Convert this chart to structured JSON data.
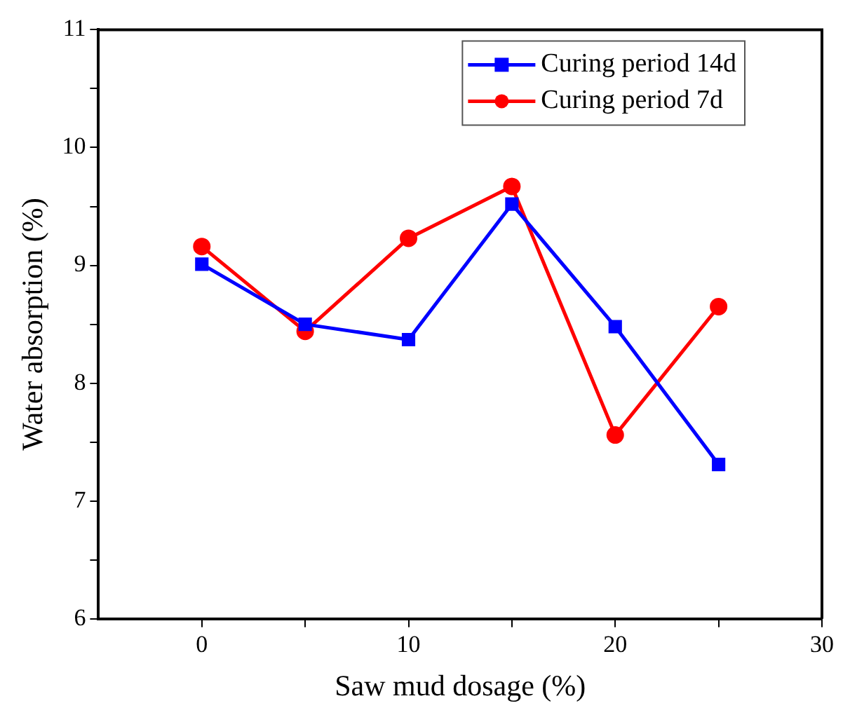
{
  "chart_data": {
    "type": "line",
    "xlabel": "Saw mud dosage (%)",
    "ylabel": "Water absorption (%)",
    "x": [
      0,
      5,
      10,
      15,
      20,
      25
    ],
    "series": [
      {
        "name": "Curing period 14d",
        "color": "#0000ff",
        "marker": "square",
        "values": [
          9.01,
          8.5,
          8.37,
          9.52,
          8.48,
          7.31
        ]
      },
      {
        "name": "Curing period 7d",
        "color": "#ff0000",
        "marker": "circle",
        "values": [
          9.16,
          8.44,
          9.23,
          9.67,
          7.56,
          8.65
        ]
      }
    ],
    "xlim": [
      -5,
      30
    ],
    "xticks": [
      0,
      {
        "value": 5,
        "label": null
      },
      10,
      {
        "value": 15,
        "label": null
      },
      20,
      {
        "value": 25,
        "label": null
      },
      30
    ],
    "ylim": [
      6,
      11
    ],
    "yticks": [
      6,
      {
        "value": 6.5,
        "label": null
      },
      7,
      {
        "value": 7.5,
        "label": null
      },
      8,
      {
        "value": 8.5,
        "label": null
      },
      9,
      {
        "value": 9.5,
        "label": null
      },
      10,
      {
        "value": 10.5,
        "label": null
      },
      11
    ],
    "grid": false,
    "legend": "top right",
    "line_style": "solid"
  }
}
